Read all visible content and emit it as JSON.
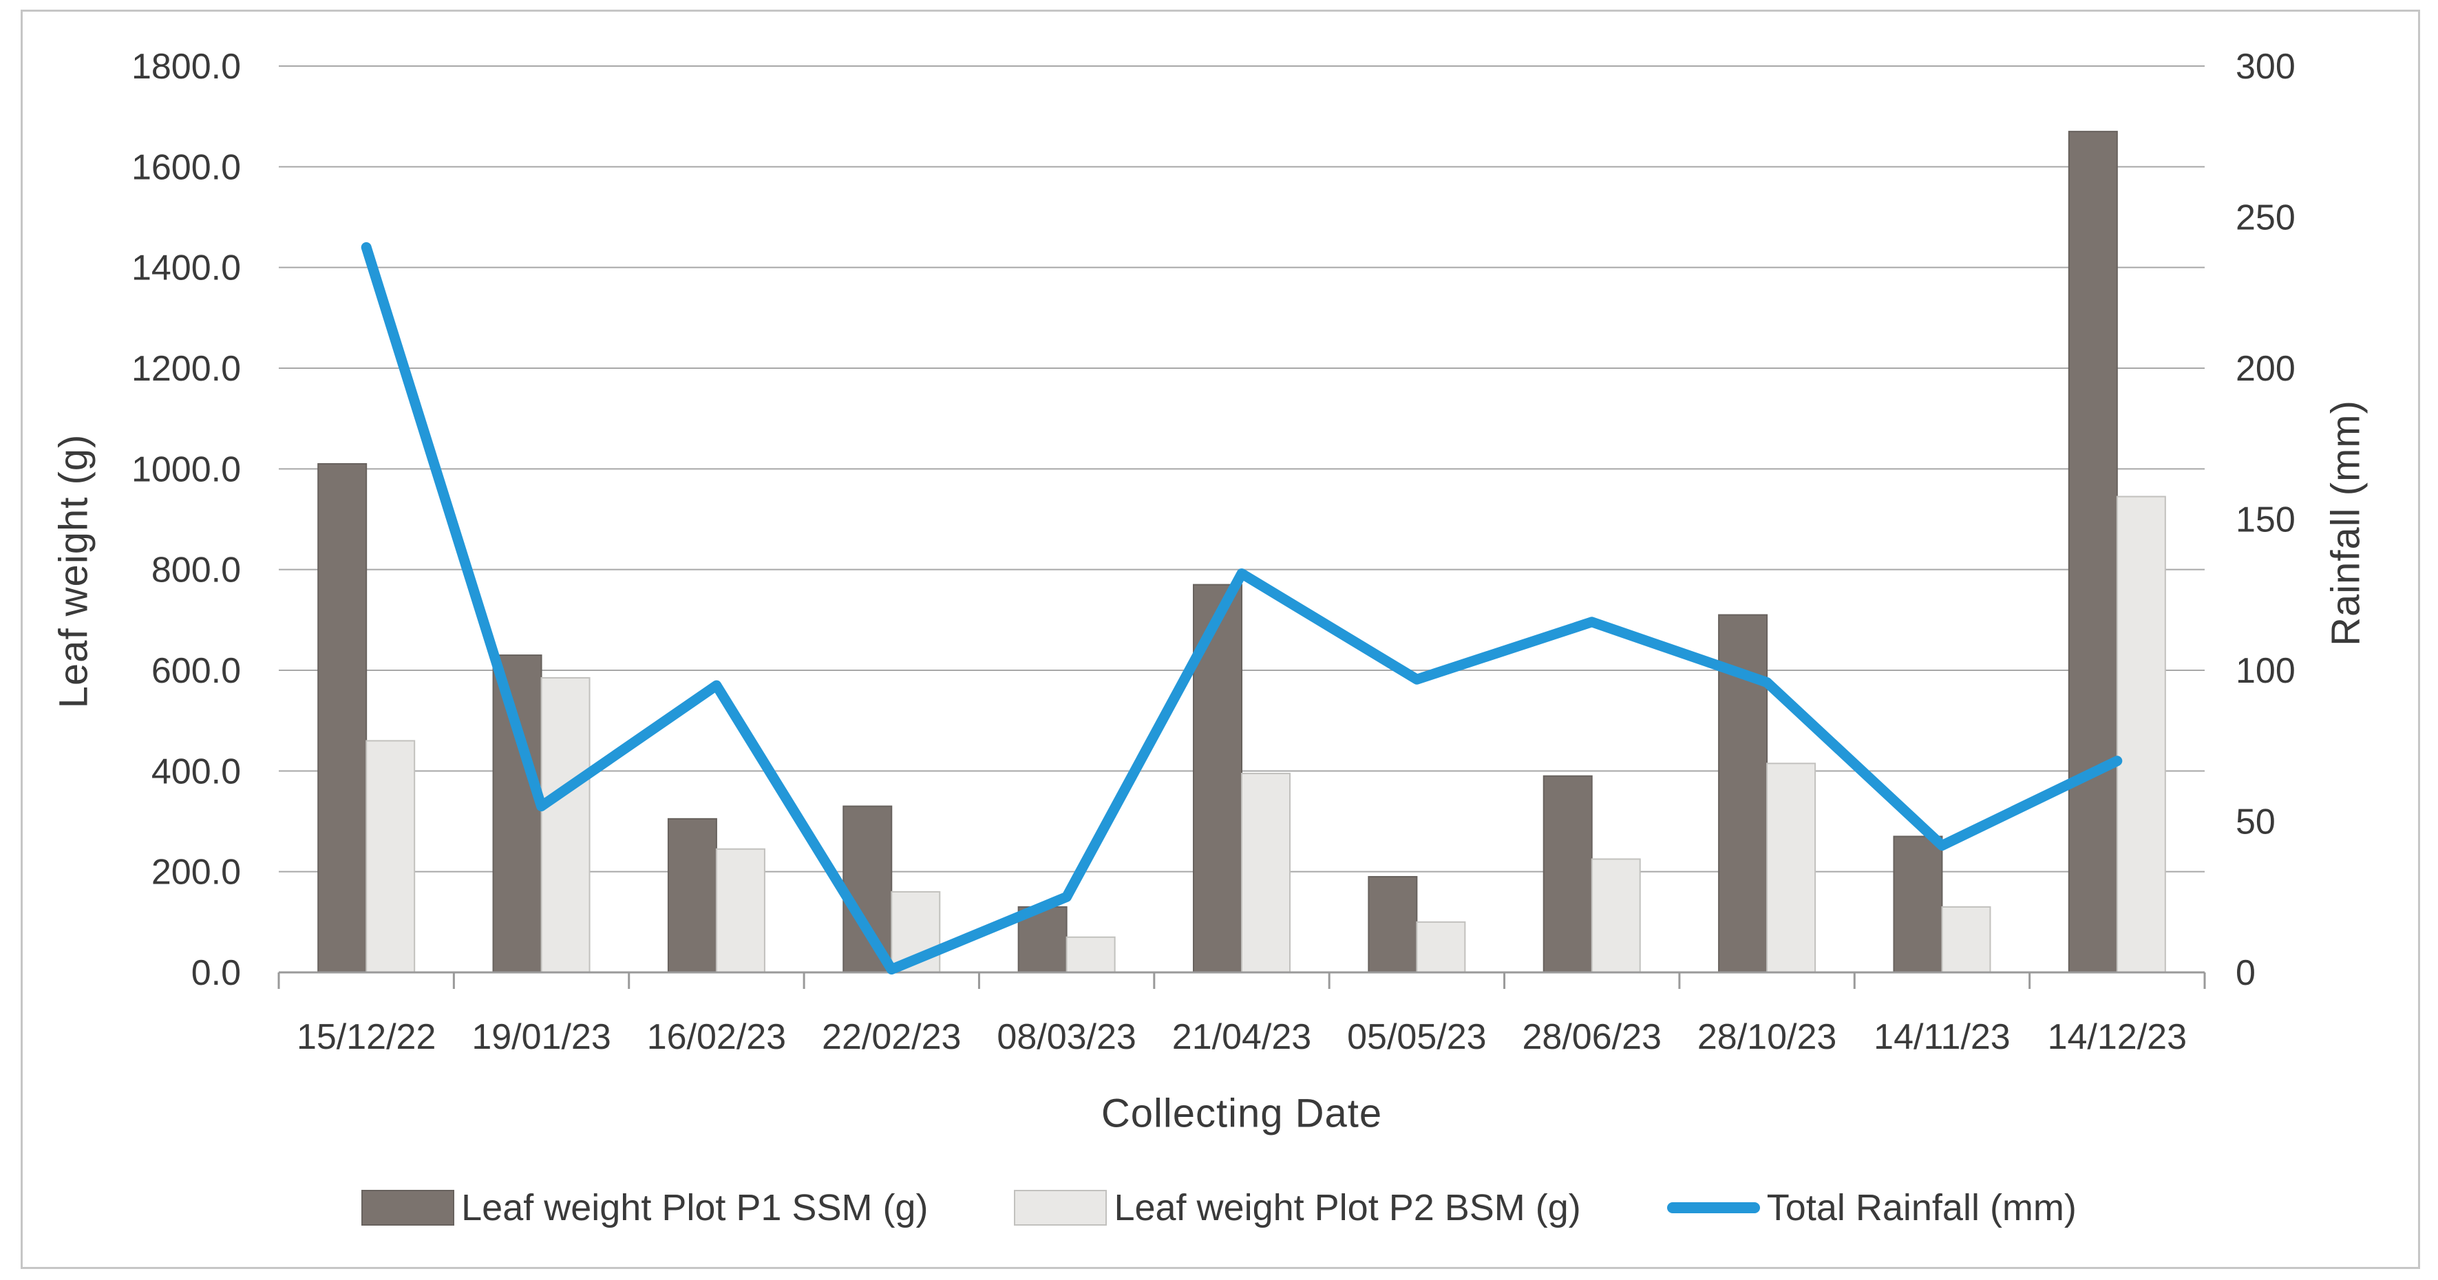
{
  "chart_data": {
    "type": "combo-bar-line",
    "title": "",
    "xlabel": "Collecting Date",
    "ylabel_left": "Leaf weight (g)",
    "ylabel_right": "Rainfall (mm)",
    "categories": [
      "15/12/22",
      "19/01/23",
      "16/02/23",
      "22/02/23",
      "08/03/23",
      "21/04/23",
      "05/05/23",
      "28/06/23",
      "28/10/23",
      "14/11/23",
      "14/12/23"
    ],
    "series": [
      {
        "name": "Leaf weight Plot P1 SSM (g)",
        "type": "bar",
        "axis": "left",
        "color": "#7b736e",
        "border_color": "#68625e",
        "values": [
          1010,
          630,
          305,
          330,
          130,
          770,
          190,
          390,
          710,
          270,
          1670
        ]
      },
      {
        "name": "Leaf weight Plot P2 BSM (g)",
        "type": "bar",
        "axis": "left",
        "color": "#e9e8e6",
        "border_color": "#c2c1be",
        "values": [
          460,
          585,
          245,
          160,
          70,
          395,
          100,
          225,
          415,
          130,
          945
        ]
      },
      {
        "name": "Total Rainfall (mm)",
        "type": "line",
        "axis": "right",
        "color": "#2397d8",
        "values": [
          240,
          55,
          95,
          1,
          25,
          132,
          97,
          116,
          96,
          42,
          70
        ]
      }
    ],
    "axes": {
      "left": {
        "min": 0,
        "max": 1800,
        "tick_labels": [
          "1800.0",
          "1600.0",
          "1400.0",
          "1200.0",
          "1000.0",
          "800.0",
          "600.0",
          "400.0",
          "200.0",
          "0.0"
        ]
      },
      "right": {
        "min": 0,
        "max": 300,
        "tick_labels": [
          "300",
          "250",
          "200",
          "150",
          "100",
          "50",
          "0"
        ]
      }
    },
    "grid": true,
    "legend_position": "bottom"
  },
  "colors": {
    "gridline": "#a8a8a8",
    "axis_line": "#9a9a9a",
    "text": "#3a3a3a",
    "frame": "#c6c6c6",
    "background": "#ffffff"
  }
}
